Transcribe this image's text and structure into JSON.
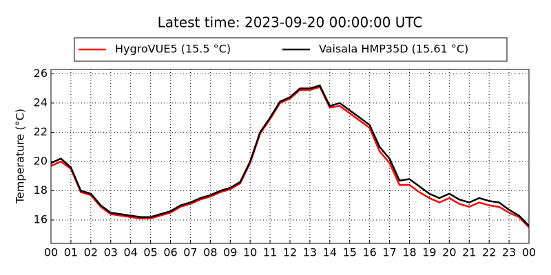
{
  "chart_data": {
    "type": "line",
    "title": "Latest time: 2023-09-20 00:00:00 UTC",
    "y_label": "Temperature (°C)",
    "x": [
      0,
      0.5,
      1,
      1.5,
      2,
      2.5,
      3,
      3.5,
      4,
      4.5,
      5,
      5.5,
      6,
      6.5,
      7,
      7.5,
      8,
      8.5,
      9,
      9.5,
      10,
      10.5,
      11,
      11.5,
      12,
      12.5,
      13,
      13.5,
      14,
      14.5,
      15,
      15.5,
      16,
      16.5,
      17,
      17.5,
      18,
      18.5,
      19,
      19.5,
      20,
      20.5,
      21,
      21.5,
      22,
      22.5,
      23,
      23.5,
      24
    ],
    "series": [
      {
        "name": "HygroVUE5 (15.5 °C)",
        "color": "#ff0000",
        "values": [
          19.7,
          20.0,
          19.5,
          17.9,
          17.7,
          16.9,
          16.4,
          16.3,
          16.2,
          16.1,
          16.1,
          16.3,
          16.5,
          16.9,
          17.1,
          17.4,
          17.6,
          17.9,
          18.1,
          18.5,
          19.9,
          21.9,
          22.9,
          24.0,
          24.3,
          24.9,
          24.9,
          25.1,
          23.7,
          23.8,
          23.3,
          22.8,
          22.3,
          20.7,
          19.9,
          18.4,
          18.4,
          17.9,
          17.5,
          17.2,
          17.5,
          17.1,
          16.9,
          17.2,
          17.0,
          16.9,
          16.5,
          16.2,
          15.5
        ]
      },
      {
        "name": "Vaisala HMP35D (15.61 °C)",
        "color": "#000000",
        "values": [
          19.9,
          20.2,
          19.6,
          18.0,
          17.8,
          17.0,
          16.5,
          16.4,
          16.3,
          16.2,
          16.2,
          16.4,
          16.6,
          17.0,
          17.2,
          17.5,
          17.7,
          18.0,
          18.2,
          18.6,
          20.0,
          22.0,
          23.0,
          24.1,
          24.4,
          25.0,
          25.0,
          25.2,
          23.8,
          24.0,
          23.5,
          23.0,
          22.5,
          21.0,
          20.2,
          18.7,
          18.8,
          18.3,
          17.8,
          17.5,
          17.8,
          17.4,
          17.2,
          17.5,
          17.3,
          17.2,
          16.7,
          16.3,
          15.6
        ]
      }
    ],
    "xlim": [
      0,
      24
    ],
    "xticks": [
      {
        "value": 0,
        "label": "00"
      },
      {
        "value": 1,
        "label": "01"
      },
      {
        "value": 2,
        "label": "02"
      },
      {
        "value": 3,
        "label": "03"
      },
      {
        "value": 4,
        "label": "04"
      },
      {
        "value": 5,
        "label": "05"
      },
      {
        "value": 6,
        "label": "06"
      },
      {
        "value": 7,
        "label": "07"
      },
      {
        "value": 8,
        "label": "08"
      },
      {
        "value": 9,
        "label": "09"
      },
      {
        "value": 10,
        "label": "10"
      },
      {
        "value": 11,
        "label": "11"
      },
      {
        "value": 12,
        "label": "12"
      },
      {
        "value": 13,
        "label": "13"
      },
      {
        "value": 14,
        "label": "14"
      },
      {
        "value": 15,
        "label": "15"
      },
      {
        "value": 16,
        "label": "16"
      },
      {
        "value": 17,
        "label": "17"
      },
      {
        "value": 18,
        "label": "18"
      },
      {
        "value": 19,
        "label": "19"
      },
      {
        "value": 20,
        "label": "20"
      },
      {
        "value": 21,
        "label": "21"
      },
      {
        "value": 22,
        "label": "22"
      },
      {
        "value": 23,
        "label": "23"
      },
      {
        "value": 24,
        "label": "00"
      }
    ],
    "ylim": [
      14.4,
      26.3
    ],
    "yticks": [
      16,
      18,
      20,
      22,
      24,
      26
    ],
    "grid": true,
    "legend": "top"
  }
}
